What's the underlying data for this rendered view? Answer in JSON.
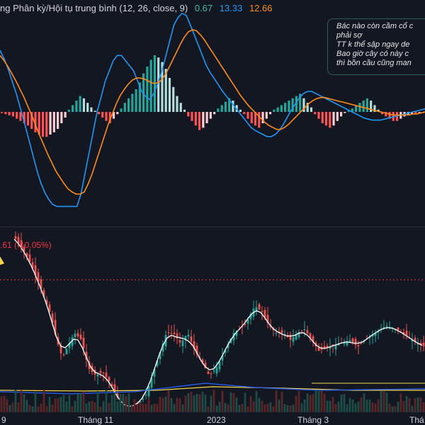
{
  "indicator": {
    "name": "ng Phân kỳ/Hội tụ trung bình (12, 26, close, 9)",
    "hist_value": "0.67",
    "macd_value": "13.33",
    "signal_value": "12.66",
    "hist_color": "#3fbf9f",
    "macd_color": "#2196f3",
    "signal_color": "#ff8c1a"
  },
  "note": {
    "lines": [
      "Bác nào còn cầm cổ c",
      "phải sợ",
      "TT k thể sập ngay de",
      "Bao giờ cây có này c",
      "thì bồn cầu cũng man"
    ]
  },
  "price_label": {
    "text": ".61 (-10.05%)",
    "color": "#f23645"
  },
  "x_axis": {
    "labels": [
      "9",
      "Tháng 11",
      "2023",
      "Tháng 3",
      "Thá"
    ]
  },
  "chart_data": [
    {
      "type": "bar",
      "title": "",
      "series": [
        {
          "name": "histogram",
          "values": [
            -1,
            -2,
            -3,
            -4,
            -6,
            -8,
            -10,
            -12,
            -15,
            -18,
            -20,
            -22,
            -22,
            -20,
            -18,
            -15,
            -10,
            -5,
            2,
            6,
            10,
            14,
            12,
            8,
            4,
            1,
            -2,
            -5,
            -8,
            -10,
            -6,
            -2,
            3,
            8,
            12,
            16,
            20,
            26,
            34,
            40,
            46,
            50,
            48,
            44,
            38,
            30,
            22,
            14,
            8,
            2,
            -4,
            -8,
            -12,
            -16,
            -14,
            -10,
            -6,
            -2,
            3,
            6,
            9,
            12,
            10,
            6,
            2,
            -2,
            -6,
            -10,
            -12,
            -14,
            -10,
            -6,
            -2,
            2,
            4,
            6,
            8,
            10,
            12,
            14,
            16,
            12,
            8,
            4,
            -2,
            -6,
            -10,
            -12,
            -14,
            -12,
            -8,
            -4,
            -1,
            1,
            3,
            6,
            8,
            10,
            12,
            10,
            6,
            2,
            -2,
            -4,
            -6,
            -8,
            -8,
            -6,
            -4,
            -3,
            -2,
            -2,
            -1,
            -1
          ]
        }
      ]
    },
    {
      "type": "line",
      "title": "",
      "series": [
        {
          "name": "",
          "values": [
            60,
            52,
            42,
            30,
            18,
            4,
            -10,
            -25,
            -40,
            -55,
            -68,
            -78,
            -85,
            -90,
            -92,
            -92,
            -92,
            -92,
            -92,
            -92,
            -80,
            -60,
            -40,
            -20,
            0,
            15,
            30,
            40,
            50,
            55,
            55,
            50,
            45,
            40,
            30,
            20,
            15,
            12,
            18,
            28,
            40,
            55,
            70,
            85,
            92,
            96,
            94,
            85,
            75,
            65,
            55,
            45,
            38,
            32,
            26,
            20,
            15,
            10,
            5,
            0,
            -5,
            -10,
            -15,
            -18,
            -20,
            -22,
            -24,
            -24,
            -22,
            -18,
            -12,
            -5,
            2,
            8,
            14,
            18,
            20,
            20,
            18,
            16,
            14,
            12,
            10,
            8,
            6,
            4,
            2,
            0,
            -2,
            -4,
            -6,
            -7,
            -8,
            -8,
            -8,
            -7,
            -6,
            -5,
            -4,
            -3,
            -2,
            -1,
            0,
            1,
            2,
            3
          ]
        },
        {
          "name": "",
          "values": [
            55,
            50,
            44,
            37,
            30,
            22,
            14,
            5,
            -4,
            -14,
            -24,
            -33,
            -42,
            -50,
            -58,
            -64,
            -70,
            -75,
            -78,
            -80,
            -80,
            -78,
            -70,
            -60,
            -48,
            -36,
            -24,
            -12,
            -2,
            8,
            16,
            22,
            27,
            31,
            33,
            33,
            32,
            30,
            28,
            28,
            30,
            35,
            42,
            50,
            58,
            66,
            73,
            78,
            80,
            79,
            75,
            70,
            64,
            58,
            52,
            46,
            40,
            34,
            28,
            22,
            16,
            11,
            6,
            2,
            -2,
            -6,
            -10,
            -13,
            -15,
            -17,
            -17,
            -15,
            -12,
            -8,
            -4,
            0,
            4,
            8,
            11,
            13,
            14,
            14,
            13,
            12,
            11,
            10,
            9,
            8,
            7,
            6,
            5,
            4,
            3,
            2,
            1,
            0,
            -1,
            -2,
            -3,
            -3,
            -3,
            -3,
            -3,
            -2,
            -2,
            -1,
            0
          ]
        }
      ]
    },
    {
      "type": "line",
      "title": "",
      "series": [
        {
          "name": "",
          "values": [
            330,
            328,
            325,
            322,
            318,
            312,
            305,
            296,
            285,
            272,
            258,
            244,
            230,
            217,
            205,
            194,
            184,
            175,
            168,
            162,
            158,
            154,
            152,
            151,
            151,
            152,
            154,
            157,
            160,
            164,
            168,
            172,
            176,
            180,
            184,
            188,
            192,
            196,
            200,
            205,
            210,
            216,
            222,
            228,
            234,
            240,
            245,
            250,
            254,
            258,
            261,
            264,
            266,
            268,
            269,
            270,
            270,
            270,
            269,
            268,
            267,
            266,
            265,
            264,
            263,
            262,
            262,
            262,
            263,
            264,
            266,
            268,
            270,
            272,
            274,
            276,
            277,
            278,
            279,
            280,
            280,
            280,
            280,
            279,
            278,
            277,
            276,
            275,
            274,
            273,
            272,
            271,
            270,
            270,
            269,
            269,
            268,
            268,
            268,
            267,
            267,
            266,
            266,
            265,
            265
          ]
        }
      ]
    }
  ]
}
